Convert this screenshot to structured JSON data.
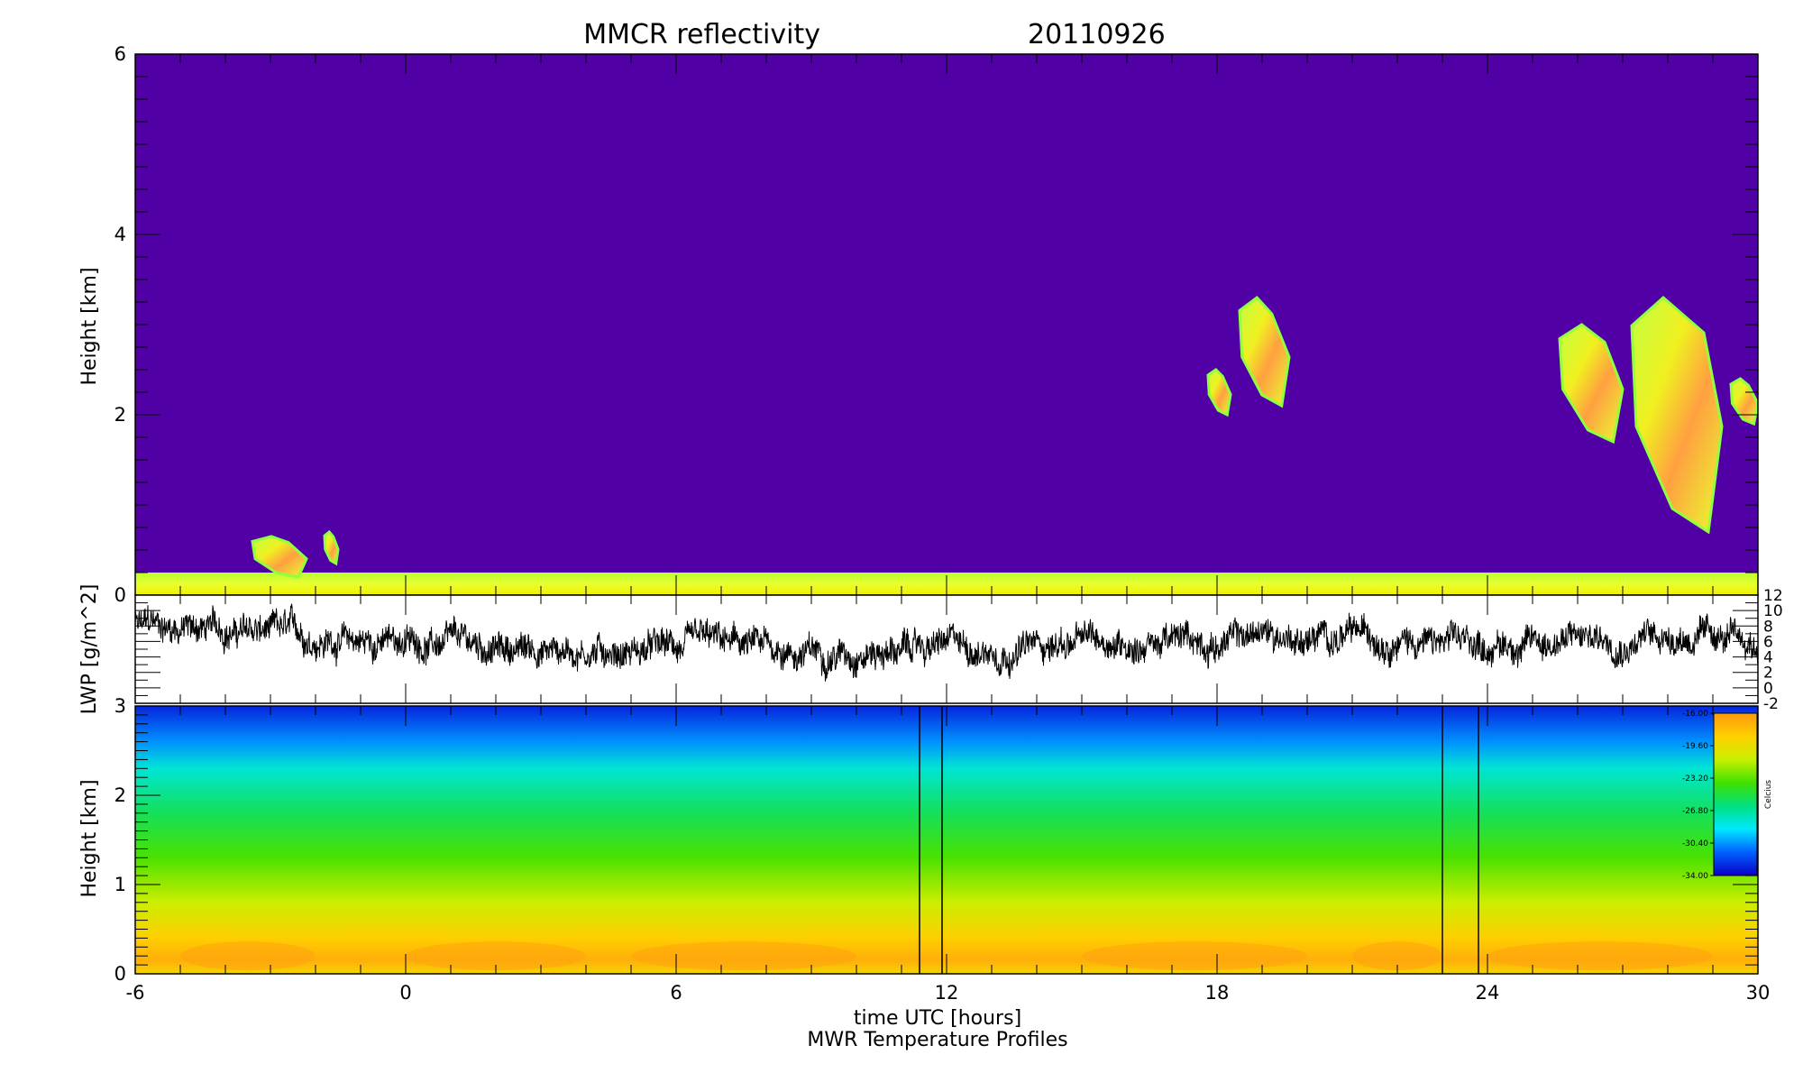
{
  "chart_data": [
    {
      "panel": "reflectivity",
      "type": "heatmap",
      "title": "MMCR reflectivity",
      "date": "20110926",
      "ylabel": "Height [km]",
      "xlim": [
        -6,
        30
      ],
      "ylim": [
        0,
        6
      ],
      "yticks": [
        "0",
        "2",
        "4",
        "6"
      ],
      "background_color": "#5000a4",
      "surface_clutter": {
        "height_top_km": 0.25
      },
      "cloud_colors": [
        "#90ff40",
        "#e8ff30",
        "#f0e000",
        "#ffa040"
      ],
      "cloud_blobs": [
        {
          "x": [
            -3.4,
            -2.2
          ],
          "y": [
            0.2,
            0.65
          ]
        },
        {
          "x": [
            -1.8,
            -1.5
          ],
          "y": [
            0.35,
            0.7
          ]
        },
        {
          "x": [
            17.8,
            18.3
          ],
          "y": [
            2.0,
            2.5
          ]
        },
        {
          "x": [
            18.5,
            19.6
          ],
          "y": [
            2.1,
            3.3
          ]
        },
        {
          "x": [
            25.6,
            27.0
          ],
          "y": [
            1.7,
            3.0
          ]
        },
        {
          "x": [
            27.2,
            29.2
          ],
          "y": [
            0.7,
            3.3
          ]
        },
        {
          "x": [
            29.4,
            30.0
          ],
          "y": [
            1.9,
            2.4
          ]
        }
      ]
    },
    {
      "panel": "lwp",
      "type": "line",
      "ylabel": "LWP [g/m^2]",
      "yticks_right": [
        "-2",
        "0",
        "2",
        "4",
        "6",
        "8",
        "10",
        "12"
      ],
      "ylim": [
        -2,
        12
      ],
      "line_color": "#000000",
      "x_hours": [
        -6,
        -5,
        -4,
        -3,
        -2,
        -1,
        0,
        1,
        2,
        3,
        4,
        5,
        6,
        7,
        8,
        9,
        10,
        11,
        12,
        13,
        14,
        15,
        16,
        17,
        18,
        19,
        20,
        21,
        22,
        23,
        24,
        25,
        26,
        27,
        28,
        29,
        30
      ],
      "values": [
        8,
        8,
        7.5,
        7,
        6.5,
        6,
        6,
        5.5,
        5,
        5,
        5,
        5,
        5,
        5.5,
        5,
        4.5,
        5,
        5,
        5.5,
        5,
        5.5,
        6,
        6,
        6,
        6,
        7,
        6.5,
        6.5,
        7,
        5.5,
        5.5,
        6,
        6.5,
        6.5,
        7,
        6.5,
        5
      ]
    },
    {
      "panel": "mwr_temperature",
      "type": "heatmap",
      "ylabel": "Height [km]",
      "xlabel": "time UTC [hours]",
      "caption": "MWR Temperature Profiles",
      "xticks": [
        "-6",
        "0",
        "6",
        "12",
        "18",
        "24",
        "30"
      ],
      "yticks": [
        "0",
        "1",
        "2",
        "3"
      ],
      "ylim": [
        0,
        3
      ],
      "colorbar": {
        "unit": "Celcius",
        "ticks": [
          "-16.00",
          "-19.60",
          "-23.20",
          "-26.80",
          "-30.40",
          "-34.00"
        ],
        "min": -34.0,
        "max": -16.0,
        "colors": [
          "#0a00c8",
          "#0060ff",
          "#00e8ff",
          "#00e080",
          "#40e000",
          "#c8f000",
          "#ffd000",
          "#ff9a10"
        ]
      },
      "temperature_profile": [
        {
          "height_km": 0.0,
          "celsius": -19.0
        },
        {
          "height_km": 0.15,
          "celsius": -17.0
        },
        {
          "height_km": 0.4,
          "celsius": -18.5
        },
        {
          "height_km": 0.8,
          "celsius": -21.0
        },
        {
          "height_km": 1.3,
          "celsius": -23.5
        },
        {
          "height_km": 1.8,
          "celsius": -25.5
        },
        {
          "height_km": 2.3,
          "celsius": -28.0
        },
        {
          "height_km": 2.6,
          "celsius": -30.5
        },
        {
          "height_km": 3.0,
          "celsius": -33.0
        }
      ],
      "data_gaps_hours": [
        [
          11.4,
          11.9
        ],
        [
          23.0,
          23.8
        ]
      ]
    }
  ]
}
